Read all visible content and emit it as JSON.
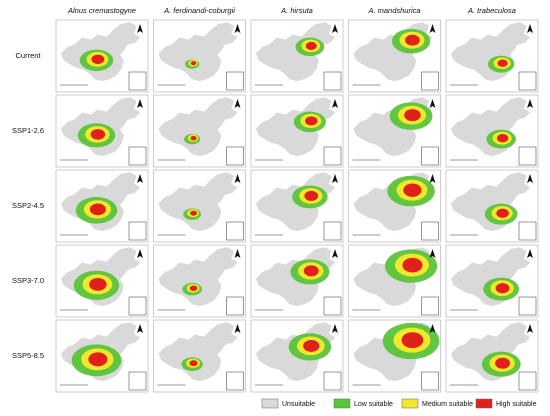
{
  "column_headers": [
    "Alnus cremastogyne",
    "A. ferdinandi-coburgii",
    "A. hirsuta",
    "A. mandshurica",
    "A. trabeculosa"
  ],
  "row_labels": [
    "Current",
    "SSP1-2.6",
    "SSP2-4.5",
    "SSP3-7.0",
    "SSP5-8.5"
  ],
  "legend": [
    {
      "label": "Unsuitable",
      "color": "#d9d9d9"
    },
    {
      "label": "Low suitable",
      "color": "#5cc43a"
    },
    {
      "label": "Medium suitable",
      "color": "#f0e82a"
    },
    {
      "label": "High suitable",
      "color": "#e0201b"
    }
  ]
}
